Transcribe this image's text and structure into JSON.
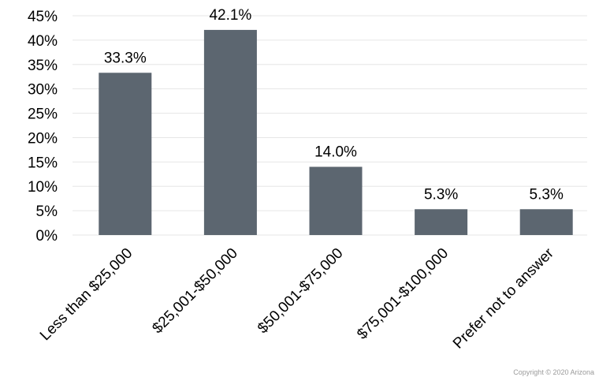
{
  "chart_data": {
    "type": "bar",
    "categories": [
      "Less than $25,000",
      "$25,001-$50,000",
      "$50,001-$75,000",
      "$75,001-$100,000",
      "Prefer not to answer"
    ],
    "values": [
      33.3,
      42.1,
      14.0,
      5.3,
      5.3
    ],
    "data_labels": [
      "33.3%",
      "42.1%",
      "14.0%",
      "5.3%",
      "5.3%"
    ],
    "y_ticks": [
      "0%",
      "5%",
      "10%",
      "15%",
      "20%",
      "25%",
      "30%",
      "35%",
      "40%",
      "45%"
    ],
    "ylim": [
      0,
      45
    ],
    "title": "",
    "xlabel": "",
    "ylabel": "",
    "grid": true,
    "bar_color": "#5c6670",
    "grid_color": "#e6e6e6"
  },
  "footer": {
    "copyright": "Copyright © 2020  Arizona"
  }
}
